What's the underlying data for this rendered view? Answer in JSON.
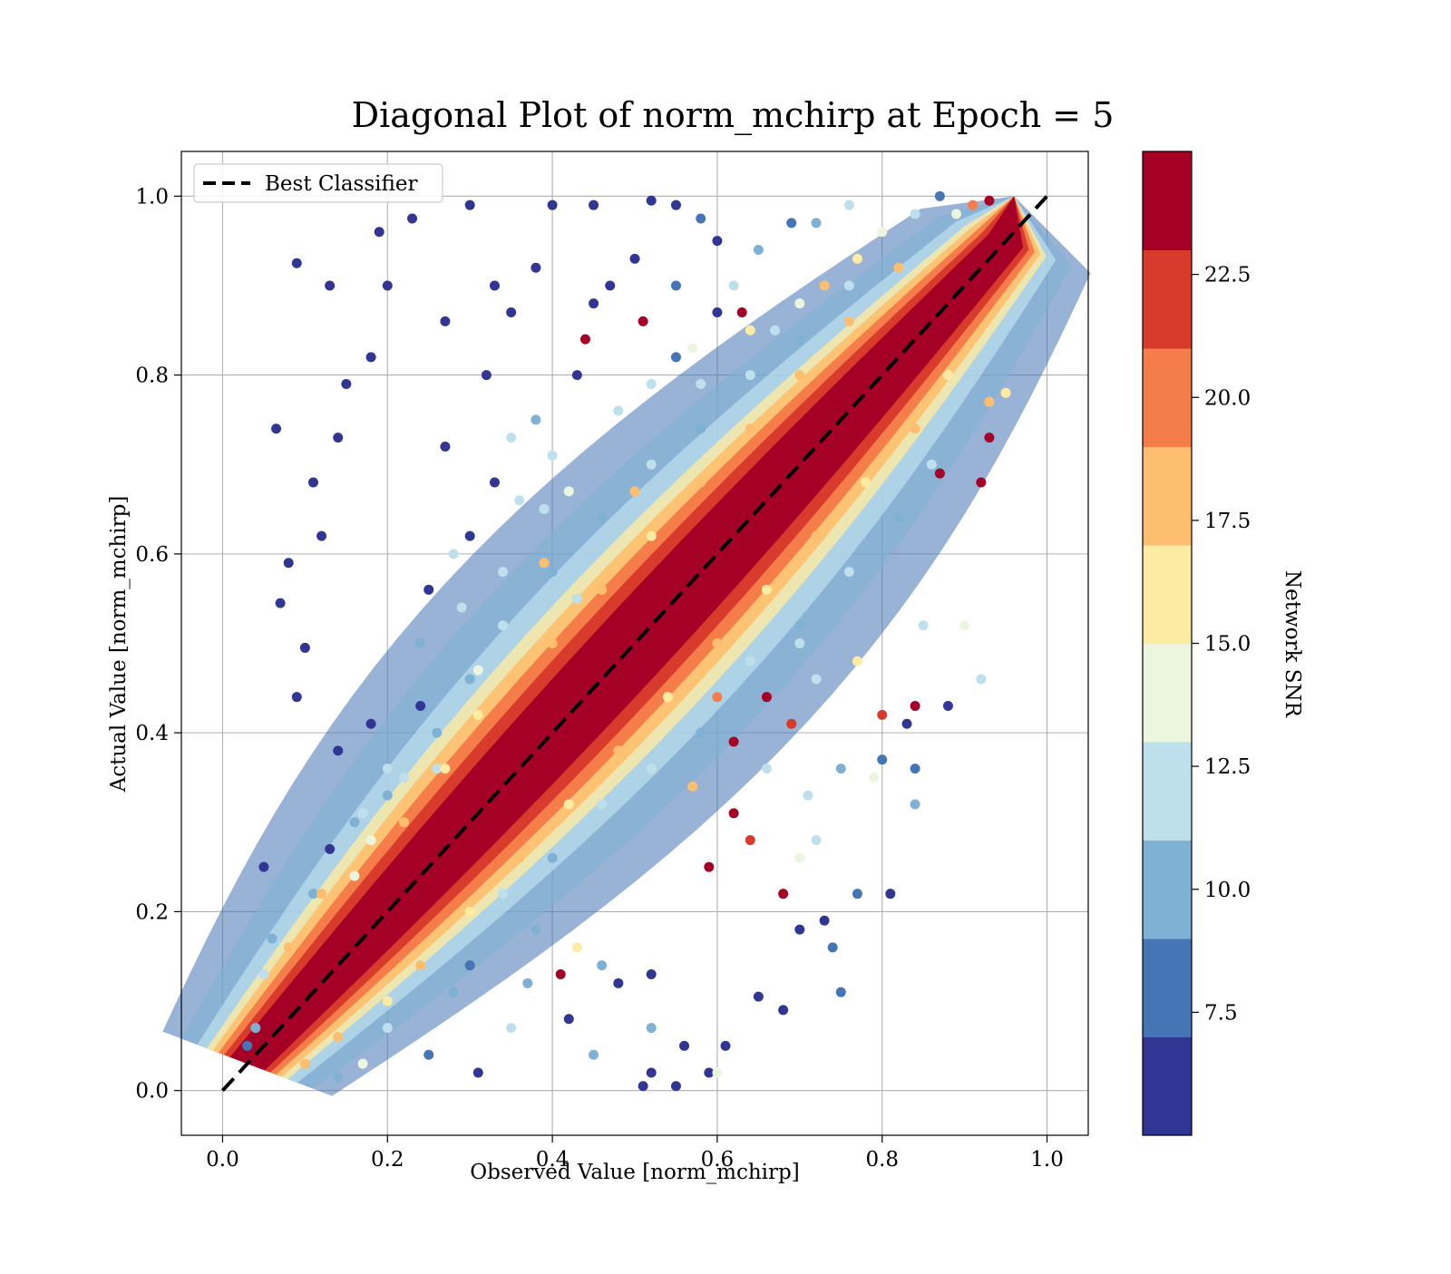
{
  "chart_data": {
    "type": "scatter",
    "title": "Diagonal Plot of norm_mchirp at Epoch = 5",
    "xlabel": "Observed Value [norm_mchirp]",
    "ylabel": "Actual Value [norm_mchirp]",
    "xlim": [
      -0.05,
      1.05
    ],
    "ylim": [
      -0.05,
      1.05
    ],
    "xticks": [
      0.0,
      0.2,
      0.4,
      0.6,
      0.8,
      1.0
    ],
    "yticks": [
      0.0,
      0.2,
      0.4,
      0.6,
      0.8,
      1.0
    ],
    "xtick_labels": [
      "0.0",
      "0.2",
      "0.4",
      "0.6",
      "0.8",
      "1.0"
    ],
    "ytick_labels": [
      "0.0",
      "0.2",
      "0.4",
      "0.6",
      "0.8",
      "1.0"
    ],
    "grid": true,
    "legend": {
      "placement": "top-left",
      "entries": [
        {
          "label": "Best Classifier",
          "style": "dashed",
          "color": "#000000"
        }
      ]
    },
    "reference_line": {
      "name": "Best Classifier",
      "x": [
        0.0,
        1.0
      ],
      "y": [
        0.0,
        1.0
      ]
    },
    "colorbar": {
      "label": "Network SNR",
      "range": [
        5.0,
        25.0
      ],
      "ticks": [
        7.5,
        10.0,
        12.5,
        15.0,
        17.5,
        20.0,
        22.5
      ],
      "tick_labels": [
        "7.5",
        "10.0",
        "12.5",
        "15.0",
        "17.5",
        "20.0",
        "22.5"
      ],
      "colors": [
        "#313695",
        "#4575b4",
        "#7fb1d4",
        "#bee0ec",
        "#ecf6df",
        "#fdeba3",
        "#fdbf6f",
        "#f47d4a",
        "#d83b2b",
        "#a50026"
      ]
    },
    "scatter_points": [
      [
        0.09,
        0.925,
        5.5
      ],
      [
        0.065,
        0.74,
        5.5
      ],
      [
        0.13,
        0.9,
        5.5
      ],
      [
        0.19,
        0.96,
        5.5
      ],
      [
        0.23,
        0.975,
        5.5
      ],
      [
        0.08,
        0.59,
        5.5
      ],
      [
        0.07,
        0.545,
        5.5
      ],
      [
        0.1,
        0.495,
        5.5
      ],
      [
        0.11,
        0.68,
        5.5
      ],
      [
        0.14,
        0.73,
        5.5
      ],
      [
        0.09,
        0.44,
        5.5
      ],
      [
        0.05,
        0.25,
        5.5
      ],
      [
        0.3,
        0.99,
        5.5
      ],
      [
        0.4,
        0.99,
        5.5
      ],
      [
        0.45,
        0.99,
        5.5
      ],
      [
        0.55,
        0.99,
        5.5
      ],
      [
        0.18,
        0.82,
        5.5
      ],
      [
        0.2,
        0.9,
        5.5
      ],
      [
        0.15,
        0.79,
        5.5
      ],
      [
        0.12,
        0.62,
        5.5
      ],
      [
        0.58,
        0.975,
        8.5
      ],
      [
        0.6,
        0.95,
        6.0
      ],
      [
        0.69,
        0.97,
        8.5
      ],
      [
        0.52,
        0.995,
        5.5
      ],
      [
        0.44,
        0.84,
        23.5
      ],
      [
        0.51,
        0.86,
        23.5
      ],
      [
        0.63,
        0.87,
        23.5
      ],
      [
        0.45,
        0.88,
        5.5
      ],
      [
        0.5,
        0.93,
        6.0
      ],
      [
        0.62,
        0.9,
        11.0
      ],
      [
        0.67,
        0.85,
        11.0
      ],
      [
        0.55,
        0.82,
        8.5
      ],
      [
        0.58,
        0.79,
        12.0
      ],
      [
        0.5,
        0.67,
        17.5
      ],
      [
        0.43,
        0.55,
        12.0
      ],
      [
        0.39,
        0.59,
        17.5
      ],
      [
        0.47,
        0.47,
        23.5
      ],
      [
        0.36,
        0.4,
        23.5
      ],
      [
        0.33,
        0.68,
        6.0
      ],
      [
        0.28,
        0.6,
        11.0
      ],
      [
        0.24,
        0.43,
        6.0
      ],
      [
        0.22,
        0.35,
        11.0
      ],
      [
        0.31,
        0.47,
        14.0
      ],
      [
        0.26,
        0.36,
        12.0
      ],
      [
        0.87,
        0.69,
        23.5
      ],
      [
        0.8,
        0.42,
        21.0
      ],
      [
        0.84,
        0.43,
        23.5
      ],
      [
        0.83,
        0.41,
        5.5
      ],
      [
        0.88,
        0.43,
        5.5
      ],
      [
        0.92,
        0.46,
        11.0
      ],
      [
        0.9,
        0.52,
        13.0
      ],
      [
        0.85,
        0.52,
        11.0
      ],
      [
        0.84,
        0.36,
        8.5
      ],
      [
        0.79,
        0.35,
        13.0
      ],
      [
        0.8,
        0.37,
        8.5
      ],
      [
        0.84,
        0.32,
        10.0
      ],
      [
        0.72,
        0.28,
        11.0
      ],
      [
        0.73,
        0.19,
        5.5
      ],
      [
        0.77,
        0.22,
        8.5
      ],
      [
        0.75,
        0.11,
        7.0
      ],
      [
        0.68,
        0.09,
        5.5
      ],
      [
        0.65,
        0.105,
        5.5
      ],
      [
        0.61,
        0.05,
        5.5
      ],
      [
        0.56,
        0.05,
        5.5
      ],
      [
        0.51,
        0.005,
        5.5
      ],
      [
        0.52,
        0.02,
        5.5
      ],
      [
        0.55,
        0.005,
        5.5
      ],
      [
        0.59,
        0.02,
        5.5
      ],
      [
        0.6,
        0.02,
        13.0
      ],
      [
        0.68,
        0.22,
        23.5
      ],
      [
        0.59,
        0.25,
        23.5
      ],
      [
        0.41,
        0.13,
        23.5
      ],
      [
        0.43,
        0.16,
        16.0
      ],
      [
        0.7,
        0.18,
        6.0
      ],
      [
        0.81,
        0.22,
        5.5
      ],
      [
        0.74,
        0.16,
        8.5
      ],
      [
        0.7,
        0.26,
        13.0
      ],
      [
        0.62,
        0.31,
        23.5
      ],
      [
        0.57,
        0.34,
        17.5
      ],
      [
        0.66,
        0.36,
        11.0
      ],
      [
        0.64,
        0.28,
        21.0
      ],
      [
        0.71,
        0.33,
        11.0
      ],
      [
        0.75,
        0.36,
        9.0
      ],
      [
        0.69,
        0.41,
        21.0
      ],
      [
        0.92,
        0.68,
        23.5
      ],
      [
        0.93,
        0.77,
        17.5
      ],
      [
        0.95,
        0.78,
        16.0
      ],
      [
        0.93,
        0.73,
        23.5
      ],
      [
        0.72,
        0.46,
        12.0
      ],
      [
        0.77,
        0.48,
        16.0
      ],
      [
        0.7,
        0.5,
        11.0
      ],
      [
        0.66,
        0.44,
        23.5
      ],
      [
        0.6,
        0.44,
        19.0
      ],
      [
        0.62,
        0.39,
        23.5
      ],
      [
        0.28,
        0.11,
        10.0
      ],
      [
        0.25,
        0.04,
        8.0
      ],
      [
        0.31,
        0.02,
        5.5
      ],
      [
        0.35,
        0.07,
        11.0
      ],
      [
        0.37,
        0.12,
        9.0
      ],
      [
        0.42,
        0.08,
        6.0
      ],
      [
        0.45,
        0.04,
        9.0
      ],
      [
        0.48,
        0.12,
        5.5
      ],
      [
        0.46,
        0.14,
        9.0
      ],
      [
        0.52,
        0.13,
        6.0
      ],
      [
        0.52,
        0.07,
        9.0
      ],
      [
        0.2,
        0.07,
        11.0
      ],
      [
        0.17,
        0.03,
        13.0
      ],
      [
        0.14,
        0.015,
        9.0
      ],
      [
        0.05,
        0.13,
        11.0
      ],
      [
        0.04,
        0.07,
        10.0
      ],
      [
        0.03,
        0.05,
        8.0
      ],
      [
        0.06,
        0.17,
        9.0
      ],
      [
        0.11,
        0.22,
        9.0
      ],
      [
        0.13,
        0.27,
        6.0
      ],
      [
        0.14,
        0.38,
        6.0
      ],
      [
        0.17,
        0.31,
        12.0
      ],
      [
        0.16,
        0.24,
        13.0
      ],
      [
        0.2,
        0.33,
        9.0
      ],
      [
        0.18,
        0.41,
        6.0
      ],
      [
        0.25,
        0.56,
        6.0
      ],
      [
        0.24,
        0.5,
        9.0
      ],
      [
        0.29,
        0.54,
        11.0
      ],
      [
        0.3,
        0.62,
        6.0
      ],
      [
        0.27,
        0.72,
        6.0
      ],
      [
        0.32,
        0.8,
        6.0
      ],
      [
        0.35,
        0.73,
        11.0
      ],
      [
        0.38,
        0.75,
        9.0
      ],
      [
        0.36,
        0.66,
        12.5
      ],
      [
        0.4,
        0.71,
        12.0
      ],
      [
        0.42,
        0.67,
        14.0
      ],
      [
        0.34,
        0.58,
        11.0
      ],
      [
        0.39,
        0.65,
        12.0
      ],
      [
        0.48,
        0.76,
        11.0
      ],
      [
        0.52,
        0.79,
        12.0
      ],
      [
        0.57,
        0.83,
        13.0
      ],
      [
        0.64,
        0.85,
        16.0
      ],
      [
        0.7,
        0.88,
        14.0
      ],
      [
        0.73,
        0.9,
        17.0
      ],
      [
        0.77,
        0.93,
        16.0
      ],
      [
        0.8,
        0.96,
        14.0
      ],
      [
        0.84,
        0.98,
        12.0
      ],
      [
        0.43,
        0.8,
        5.5
      ],
      [
        0.47,
        0.9,
        5.5
      ],
      [
        0.35,
        0.87,
        5.5
      ],
      [
        0.38,
        0.92,
        5.5
      ],
      [
        0.27,
        0.86,
        5.5
      ],
      [
        0.33,
        0.9,
        5.5
      ],
      [
        0.55,
        0.9,
        8.0
      ],
      [
        0.6,
        0.87,
        6.0
      ],
      [
        0.65,
        0.94,
        10.0
      ],
      [
        0.72,
        0.97,
        10.0
      ],
      [
        0.76,
        0.99,
        12.0
      ],
      [
        0.87,
        1.0,
        8.0
      ],
      [
        0.89,
        0.98,
        14.0
      ],
      [
        0.91,
        0.99,
        19.0
      ],
      [
        0.93,
        0.995,
        23.5
      ],
      [
        0.18,
        0.28,
        14.0
      ],
      [
        0.22,
        0.3,
        17.0
      ],
      [
        0.27,
        0.36,
        16.0
      ],
      [
        0.31,
        0.42,
        15.0
      ],
      [
        0.35,
        0.46,
        18.0
      ],
      [
        0.4,
        0.5,
        17.5
      ],
      [
        0.46,
        0.56,
        18.0
      ],
      [
        0.52,
        0.62,
        16.0
      ],
      [
        0.58,
        0.68,
        17.5
      ],
      [
        0.64,
        0.74,
        17.5
      ],
      [
        0.7,
        0.8,
        18.0
      ],
      [
        0.76,
        0.86,
        17.5
      ],
      [
        0.82,
        0.92,
        18.0
      ],
      [
        0.12,
        0.22,
        18.0
      ],
      [
        0.08,
        0.16,
        17.0
      ],
      [
        0.24,
        0.14,
        17.5
      ],
      [
        0.3,
        0.2,
        16.0
      ],
      [
        0.36,
        0.26,
        17.5
      ],
      [
        0.42,
        0.32,
        16.0
      ],
      [
        0.48,
        0.38,
        17.5
      ],
      [
        0.54,
        0.44,
        16.0
      ],
      [
        0.6,
        0.5,
        17.5
      ],
      [
        0.66,
        0.56,
        16.0
      ],
      [
        0.72,
        0.62,
        17.5
      ],
      [
        0.78,
        0.68,
        16.0
      ],
      [
        0.84,
        0.74,
        17.5
      ],
      [
        0.88,
        0.8,
        16.0
      ],
      [
        0.2,
        0.1,
        16.0
      ],
      [
        0.14,
        0.06,
        17.0
      ],
      [
        0.1,
        0.03,
        18.0
      ],
      [
        0.34,
        0.22,
        12.0
      ],
      [
        0.4,
        0.26,
        9.0
      ],
      [
        0.46,
        0.32,
        11.0
      ],
      [
        0.52,
        0.36,
        12.0
      ],
      [
        0.58,
        0.4,
        10.0
      ],
      [
        0.64,
        0.48,
        12.0
      ],
      [
        0.7,
        0.52,
        9.0
      ],
      [
        0.76,
        0.58,
        12.0
      ],
      [
        0.82,
        0.64,
        10.0
      ],
      [
        0.86,
        0.7,
        12.0
      ],
      [
        0.3,
        0.14,
        8.0
      ],
      [
        0.38,
        0.18,
        9.0
      ],
      [
        0.26,
        0.4,
        10.0
      ],
      [
        0.3,
        0.46,
        9.0
      ],
      [
        0.34,
        0.52,
        12.0
      ],
      [
        0.4,
        0.58,
        10.0
      ],
      [
        0.46,
        0.64,
        9.0
      ],
      [
        0.52,
        0.7,
        12.0
      ],
      [
        0.58,
        0.74,
        10.0
      ],
      [
        0.64,
        0.8,
        12.0
      ],
      [
        0.7,
        0.84,
        10.0
      ],
      [
        0.76,
        0.9,
        12.0
      ],
      [
        0.2,
        0.36,
        12.0
      ],
      [
        0.16,
        0.3,
        9.0
      ]
    ]
  }
}
